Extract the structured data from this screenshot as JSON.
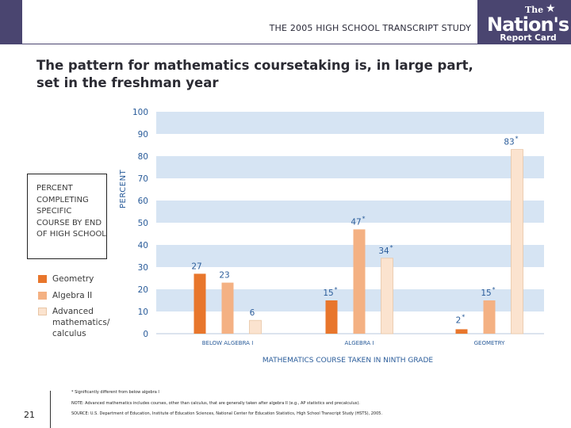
{
  "header": {
    "title": "THE 2005 HIGH SCHOOL TRANSCRIPT STUDY",
    "logo_the": "The",
    "logo_nations": "Nation's",
    "logo_report_card": "Report Card"
  },
  "slide_title_line1": "The pattern for mathematics coursetaking is, in large part,",
  "slide_title_line2": "set in the freshman year",
  "legend": {
    "title": "PERCENT COMPLETING SPECIFIC COURSE BY END OF HIGH SCHOOL",
    "items": [
      {
        "label": "Geometry",
        "color": "#e8762c"
      },
      {
        "label": "Algebra II",
        "color": "#f4b183"
      },
      {
        "label": "Advanced mathematics/ calculus",
        "color": "#fbe3cf"
      }
    ]
  },
  "chart_data": {
    "type": "bar",
    "title": "",
    "ylabel": "PERCENT",
    "xlabel": "MATHEMATICS COURSE TAKEN IN NINTH GRADE",
    "ylim": [
      0,
      100
    ],
    "yticks": [
      0,
      10,
      20,
      30,
      40,
      50,
      60,
      70,
      80,
      90,
      100
    ],
    "categories": [
      "BELOW ALGEBRA I",
      "ALGEBRA I",
      "GEOMETRY"
    ],
    "series": [
      {
        "name": "Geometry",
        "values": [
          27,
          15,
          2
        ],
        "labels": [
          "27",
          "15",
          "2"
        ],
        "significant": [
          false,
          true,
          true
        ]
      },
      {
        "name": "Algebra II",
        "values": [
          23,
          47,
          15
        ],
        "labels": [
          "23",
          "47",
          "15"
        ],
        "significant": [
          false,
          true,
          true
        ]
      },
      {
        "name": "Advanced mathematics/ calculus",
        "values": [
          6,
          34,
          83
        ],
        "labels": [
          "6",
          "34",
          "83"
        ],
        "significant": [
          false,
          true,
          true
        ]
      }
    ],
    "significance_marker": "*",
    "band_color": "#d6e4f3"
  },
  "notes": {
    "significance": "* Significantly different from below algebra I",
    "note": "NOTE: Advanced mathematics includes courses, other than calculus, that are generally taken after algebra II (e.g., AP statistics and precalculus).",
    "source": "SOURCE: U.S. Department of Education, Institute of Education Sciences, National Center for Education Statistics, High School Transcript Study (HSTS), 2005."
  },
  "page_number": "21"
}
